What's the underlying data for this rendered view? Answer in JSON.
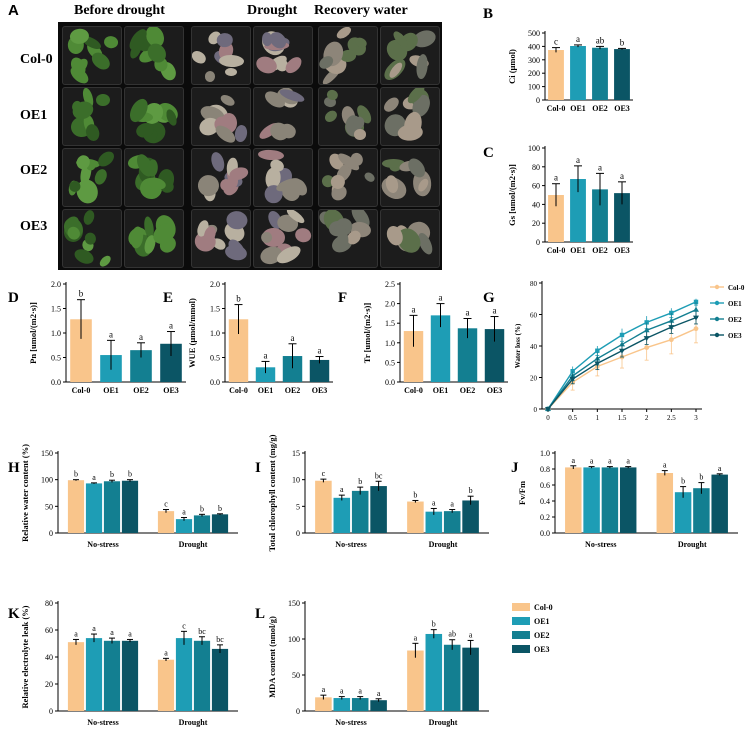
{
  "photo": {
    "letter": "A",
    "columns": [
      "Before drought",
      "Drought",
      "Recovery water"
    ],
    "rows": [
      "Col-0",
      "OE1",
      "OE2",
      "OE3"
    ]
  },
  "colors": {
    "Col-0": "#f9c58b",
    "OE1": "#1e9db5",
    "OE2": "#137f91",
    "OE3": "#0b5565"
  },
  "chart_data": [
    {
      "id": "B",
      "type": "bar",
      "ylabel": "Ci (μmol)",
      "ylim": [
        0,
        500
      ],
      "yticks": [
        0,
        100,
        200,
        300,
        400,
        500
      ],
      "categories": [
        "Col-0",
        "OE1",
        "OE2",
        "OE3"
      ],
      "values": [
        373,
        403,
        390,
        380
      ],
      "errors": [
        18,
        8,
        10,
        5
      ],
      "labels": [
        "c",
        "a",
        "ab",
        "b"
      ]
    },
    {
      "id": "C",
      "type": "bar",
      "ylabel": "Gs [umol/(m2·s)]",
      "ylim": [
        0,
        100
      ],
      "yticks": [
        0,
        20,
        40,
        60,
        80,
        100
      ],
      "categories": [
        "Col-0",
        "OE1",
        "OE2",
        "OE3"
      ],
      "values": [
        50,
        67,
        56,
        52
      ],
      "errors": [
        12,
        14,
        17,
        12
      ],
      "labels": [
        "a",
        "a",
        "a",
        "a"
      ]
    },
    {
      "id": "D",
      "type": "bar",
      "ylabel": "Pn [umol/(m2·s)]",
      "ylim": [
        0,
        2.0
      ],
      "yticks": [
        0,
        0.5,
        1.0,
        1.5,
        2.0
      ],
      "categories": [
        "Col-0",
        "OE1",
        "OE2",
        "OE3"
      ],
      "values": [
        1.28,
        0.55,
        0.65,
        0.78
      ],
      "errors": [
        0.4,
        0.3,
        0.15,
        0.25
      ],
      "labels": [
        "b",
        "a",
        "a",
        "a"
      ]
    },
    {
      "id": "E",
      "type": "bar",
      "ylabel": "WUE (μmol/mmol)",
      "ylim": [
        0,
        2.0
      ],
      "yticks": [
        0,
        0.5,
        1.0,
        1.5,
        2.0
      ],
      "categories": [
        "Col-0",
        "OE1",
        "OE2",
        "OE3"
      ],
      "values": [
        1.28,
        0.3,
        0.53,
        0.45
      ],
      "errors": [
        0.3,
        0.12,
        0.25,
        0.07
      ],
      "labels": [
        "b",
        "a",
        "a",
        "a"
      ]
    },
    {
      "id": "F",
      "type": "bar",
      "ylabel": "Tr [umol/(m2·s)]",
      "ylim": [
        0,
        2.5
      ],
      "yticks": [
        0,
        0.5,
        1.0,
        1.5,
        2.0,
        2.5
      ],
      "categories": [
        "Col-0",
        "OE1",
        "OE2",
        "OE3"
      ],
      "values": [
        1.3,
        1.7,
        1.37,
        1.35
      ],
      "errors": [
        0.4,
        0.3,
        0.25,
        0.32
      ],
      "labels": [
        "a",
        "a",
        "a",
        "a"
      ]
    },
    {
      "id": "G",
      "type": "line",
      "ylabel": "Water loss (%)",
      "ylim": [
        0,
        80
      ],
      "yticks": [
        0,
        20,
        40,
        60,
        80
      ],
      "x": [
        0,
        0.5,
        1,
        1.5,
        2,
        2.5,
        3
      ],
      "xticks": [
        "0",
        "0.5",
        "1",
        "1.5",
        "2",
        "2.5",
        "3"
      ],
      "series": [
        {
          "name": "Col-0",
          "values": [
            0,
            17,
            27,
            33,
            39,
            44,
            51
          ],
          "errors": [
            0,
            5,
            6,
            7,
            8,
            9,
            9
          ],
          "marker": "circle"
        },
        {
          "name": "OE1",
          "values": [
            0,
            24,
            37,
            47,
            55,
            61,
            68
          ],
          "errors": [
            0,
            3,
            3,
            4,
            4,
            3,
            2
          ],
          "marker": "square"
        },
        {
          "name": "OE2",
          "values": [
            0,
            21,
            32,
            41,
            50,
            56,
            63
          ],
          "errors": [
            0,
            3,
            4,
            4,
            5,
            5,
            5
          ],
          "marker": "triangle-up"
        },
        {
          "name": "OE3",
          "values": [
            0,
            19,
            29,
            37,
            45,
            52,
            58
          ],
          "errors": [
            0,
            3,
            4,
            4,
            4,
            4,
            4
          ],
          "marker": "triangle-down"
        }
      ]
    },
    {
      "id": "H",
      "type": "bar",
      "ylabel": "Relative water content (%)",
      "ylim": [
        0,
        150
      ],
      "yticks": [
        0,
        50,
        100,
        150
      ],
      "categories": [
        "No-stress",
        "Drought"
      ],
      "series": [
        {
          "name": "Col-0",
          "values": [
            99,
            41
          ],
          "errors": [
            1,
            3
          ]
        },
        {
          "name": "OE1",
          "values": [
            93,
            26
          ],
          "errors": [
            1,
            3
          ]
        },
        {
          "name": "OE2",
          "values": [
            97,
            33
          ],
          "errors": [
            2,
            2
          ]
        },
        {
          "name": "OE3",
          "values": [
            98,
            35
          ],
          "errors": [
            2,
            1
          ]
        }
      ],
      "labels": [
        [
          "b",
          "a",
          "b",
          "b"
        ],
        [
          "c",
          "a",
          "b",
          "b"
        ]
      ]
    },
    {
      "id": "I",
      "type": "bar",
      "ylabel": "Total chlorophyll content (mg/g)",
      "ylim": [
        0,
        15
      ],
      "yticks": [
        0,
        5,
        10,
        15
      ],
      "categories": [
        "No-stress",
        "Drought"
      ],
      "series": [
        {
          "name": "Col-0",
          "values": [
            9.8,
            5.9
          ],
          "errors": [
            0.3,
            0.2
          ]
        },
        {
          "name": "OE1",
          "values": [
            6.6,
            4.0
          ],
          "errors": [
            0.5,
            0.6
          ]
        },
        {
          "name": "OE2",
          "values": [
            7.9,
            4.1
          ],
          "errors": [
            0.7,
            0.3
          ]
        },
        {
          "name": "OE3",
          "values": [
            8.8,
            6.1
          ],
          "errors": [
            0.9,
            0.8
          ]
        }
      ],
      "labels": [
        [
          "c",
          "a",
          "b",
          "bc"
        ],
        [
          "b",
          "a",
          "a",
          "b"
        ]
      ]
    },
    {
      "id": "J",
      "type": "bar",
      "ylabel": "Fv/Fm",
      "ylim": [
        0,
        1.0
      ],
      "yticks": [
        0,
        0.2,
        0.4,
        0.6,
        0.8,
        1.0
      ],
      "categories": [
        "No-stress",
        "Drought"
      ],
      "series": [
        {
          "name": "Col-0",
          "values": [
            0.82,
            0.75
          ],
          "errors": [
            0.02,
            0.03
          ]
        },
        {
          "name": "OE1",
          "values": [
            0.82,
            0.51
          ],
          "errors": [
            0.01,
            0.07
          ]
        },
        {
          "name": "OE2",
          "values": [
            0.82,
            0.56
          ],
          "errors": [
            0.01,
            0.07
          ]
        },
        {
          "name": "OE3",
          "values": [
            0.82,
            0.73
          ],
          "errors": [
            0.01,
            0.01
          ]
        }
      ],
      "labels": [
        [
          "a",
          "a",
          "a",
          "a"
        ],
        [
          "a",
          "b",
          "b",
          "a"
        ]
      ]
    },
    {
      "id": "K",
      "type": "bar",
      "ylabel": "Relative electrolyte leak (%)",
      "ylim": [
        0,
        80
      ],
      "yticks": [
        0,
        20,
        40,
        60,
        80
      ],
      "categories": [
        "No-stress",
        "Drought"
      ],
      "series": [
        {
          "name": "Col-0",
          "values": [
            51,
            38
          ],
          "errors": [
            2,
            1
          ]
        },
        {
          "name": "OE1",
          "values": [
            54,
            54
          ],
          "errors": [
            3,
            5
          ]
        },
        {
          "name": "OE2",
          "values": [
            52,
            52
          ],
          "errors": [
            2,
            3
          ]
        },
        {
          "name": "OE3",
          "values": [
            52,
            46
          ],
          "errors": [
            1,
            3
          ]
        }
      ],
      "labels": [
        [
          "a",
          "a",
          "a",
          "a"
        ],
        [
          "a",
          "c",
          "bc",
          "bc"
        ]
      ]
    },
    {
      "id": "L",
      "type": "bar",
      "ylabel": "MDA content (nmol/g)",
      "ylim": [
        0,
        150
      ],
      "yticks": [
        0,
        50,
        100,
        150
      ],
      "categories": [
        "No-stress",
        "Drought"
      ],
      "series": [
        {
          "name": "Col-0",
          "values": [
            19,
            84
          ],
          "errors": [
            3,
            10
          ]
        },
        {
          "name": "OE1",
          "values": [
            18,
            107
          ],
          "errors": [
            2,
            6
          ]
        },
        {
          "name": "OE2",
          "values": [
            18,
            92
          ],
          "errors": [
            2,
            7
          ]
        },
        {
          "name": "OE3",
          "values": [
            15,
            88
          ],
          "errors": [
            2,
            10
          ]
        }
      ],
      "labels": [
        [
          "a",
          "a",
          "a",
          "a"
        ],
        [
          "a",
          "b",
          "ab",
          "a"
        ]
      ]
    }
  ],
  "legend": [
    "Col-0",
    "OE1",
    "OE2",
    "OE3"
  ]
}
